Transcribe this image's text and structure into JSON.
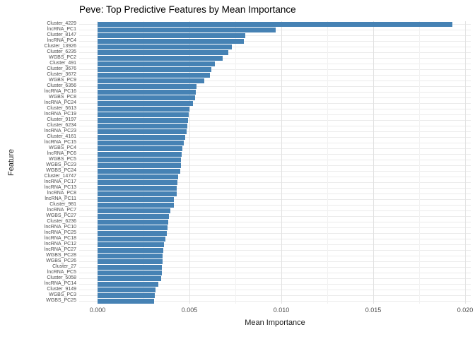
{
  "title": "Peve: Top Predictive Features by Mean Importance",
  "colors": {
    "bar": "#4682B4",
    "grid_major": "#e2e2e2",
    "grid_minor": "#f2f2f2",
    "axis_text": "#4d4d4d",
    "title_text": "#000000",
    "background": "#ffffff"
  },
  "chart_data": {
    "type": "bar",
    "orientation": "horizontal",
    "title": "Peve: Top Predictive Features by Mean Importance",
    "xlabel": "Mean Importance",
    "ylabel": "Feature",
    "xlim": [
      0,
      0.02
    ],
    "x_ticks": [
      "0.000",
      "0.005",
      "0.010",
      "0.015",
      "0.020"
    ],
    "x_tick_values": [
      0,
      0.005,
      0.01,
      0.015,
      0.02
    ],
    "minor_gridlines": [
      0.0025,
      0.0075,
      0.0125,
      0.0175
    ],
    "grid": true,
    "legend": "none",
    "bar_color": "#4682B4",
    "categories": [
      "Cluster_4229",
      "lncRNA_PC1",
      "Cluster_8147",
      "lncRNA_PC4",
      "Cluster_13926",
      "Cluster_6235",
      "WGBS_PC2",
      "Cluster_491",
      "Cluster_3676",
      "Cluster_3672",
      "WGBS_PC9",
      "Cluster_6356",
      "lncRNA_PC16",
      "WGBS_PC8",
      "lncRNA_PC24",
      "Cluster_5613",
      "lncRNA_PC19",
      "Cluster_9197",
      "Cluster_6234",
      "lncRNA_PC23",
      "Cluster_4161",
      "lncRNA_PC15",
      "WGBS_PC4",
      "lncRNA_PC6",
      "WGBS_PC5",
      "WGBS_PC23",
      "WGBS_PC24",
      "Cluster_14747",
      "lncRNA_PC17",
      "lncRNA_PC13",
      "lncRNA_PC8",
      "lncRNA_PC11",
      "Cluster_981",
      "lncRNA_PC7",
      "WGBS_PC27",
      "Cluster_6236",
      "lncRNA_PC10",
      "lncRNA_PC25",
      "lncRNA_PC18",
      "lncRNA_PC12",
      "lncRNA_PC27",
      "WGBS_PC28",
      "WGBS_PC26",
      "Cluster_27",
      "lncRNA_PC5",
      "Cluster_5058",
      "lncRNA_PC14",
      "Cluster_9149",
      "WGBS_PC3",
      "WGBS_PC25"
    ],
    "values": [
      0.0193,
      0.0097,
      0.00805,
      0.00795,
      0.0073,
      0.0071,
      0.0068,
      0.0064,
      0.0062,
      0.0061,
      0.0058,
      0.0054,
      0.00535,
      0.0053,
      0.0052,
      0.005,
      0.00495,
      0.00492,
      0.00488,
      0.00483,
      0.00477,
      0.00468,
      0.00462,
      0.00458,
      0.00454,
      0.00452,
      0.0045,
      0.00437,
      0.00433,
      0.00431,
      0.0043,
      0.00416,
      0.00414,
      0.00396,
      0.00388,
      0.00385,
      0.00381,
      0.00377,
      0.00368,
      0.00362,
      0.00359,
      0.00354,
      0.00352,
      0.00351,
      0.00349,
      0.00345,
      0.0033,
      0.00315,
      0.0031,
      0.00307
    ]
  }
}
